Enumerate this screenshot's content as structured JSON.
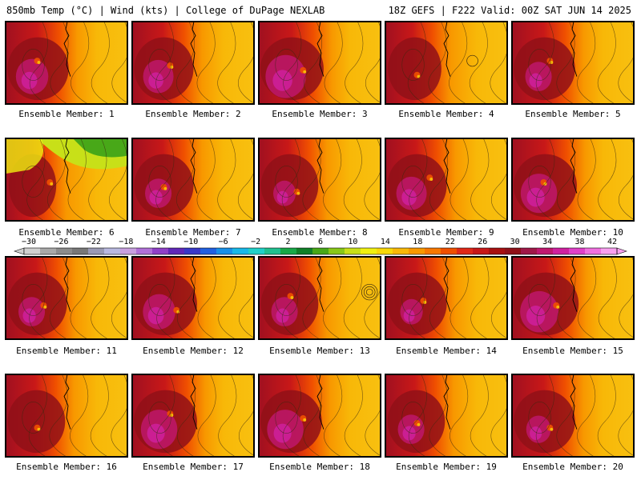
{
  "header": {
    "left_title": "850mb Temp (°C) | Wind (kts) | College of DuPage NEXLAB",
    "right_title": "18Z GEFS | F222 Valid: 00Z SAT JUN 14 2025"
  },
  "colorbar": {
    "labels": [
      "−30",
      "−26",
      "−22",
      "−18",
      "−14",
      "−10",
      "−6",
      "−2",
      "2",
      "6",
      "10",
      "14",
      "18",
      "22",
      "26",
      "30",
      "34",
      "38",
      "42"
    ],
    "colors": [
      "#d0d0d0",
      "#a8a8a8",
      "#8c8c8c",
      "#787878",
      "#9a9ab4",
      "#b8b8e0",
      "#c8a0e0",
      "#b070d8",
      "#9040c8",
      "#6028b8",
      "#3838c8",
      "#2060e0",
      "#1890e8",
      "#18b8e8",
      "#20d0c8",
      "#20c090",
      "#18a848",
      "#108028",
      "#48a818",
      "#88c818",
      "#c8e018",
      "#f0f010",
      "#f8d808",
      "#f8b808",
      "#f89800",
      "#f87800",
      "#f05000",
      "#e02818",
      "#c81818",
      "#a81010",
      "#901018",
      "#a01848",
      "#c01870",
      "#d020a0",
      "#e040c8",
      "#f070e0",
      "#f8a0f0"
    ]
  },
  "panels": [
    {
      "label": "Ensemble Member: 1",
      "warmth": 0.55,
      "mag": 0.5
    },
    {
      "label": "Ensemble Member: 2",
      "warmth": 0.5,
      "mag": 0.45
    },
    {
      "label": "Ensemble Member: 3",
      "warmth": 0.6,
      "mag": 0.7
    },
    {
      "label": "Ensemble Member: 4",
      "warmth": 0.35,
      "mag": 0.2
    },
    {
      "label": "Ensemble Member: 5",
      "warmth": 0.55,
      "mag": 0.35
    },
    {
      "label": "Ensemble Member: 6",
      "warmth": 0.2,
      "mag": 0.2
    },
    {
      "label": "Ensemble Member: 7",
      "warmth": 0.5,
      "mag": 0.35
    },
    {
      "label": "Ensemble Member: 8",
      "warmth": 0.45,
      "mag": 0.25
    },
    {
      "label": "Ensemble Member: 9",
      "warmth": 0.5,
      "mag": 0.45
    },
    {
      "label": "Ensemble Member: 10",
      "warmth": 0.6,
      "mag": 0.6
    },
    {
      "label": "Ensemble Member: 11",
      "warmth": 0.5,
      "mag": 0.35
    },
    {
      "label": "Ensemble Member: 12",
      "warmth": 0.6,
      "mag": 0.5
    },
    {
      "label": "Ensemble Member: 13",
      "warmth": 0.45,
      "mag": 0.35
    },
    {
      "label": "Ensemble Member: 14",
      "warmth": 0.5,
      "mag": 0.25
    },
    {
      "label": "Ensemble Member: 15",
      "warmth": 0.65,
      "mag": 0.65
    },
    {
      "label": "Ensemble Member: 16",
      "warmth": 0.45,
      "mag": 0.15
    },
    {
      "label": "Ensemble Member: 17",
      "warmth": 0.6,
      "mag": 0.6
    },
    {
      "label": "Ensemble Member: 18",
      "warmth": 0.55,
      "mag": 0.6
    },
    {
      "label": "Ensemble Member: 19",
      "warmth": 0.45,
      "mag": 0.35
    },
    {
      "label": "Ensemble Member: 20",
      "warmth": 0.55,
      "mag": 0.3
    }
  ]
}
